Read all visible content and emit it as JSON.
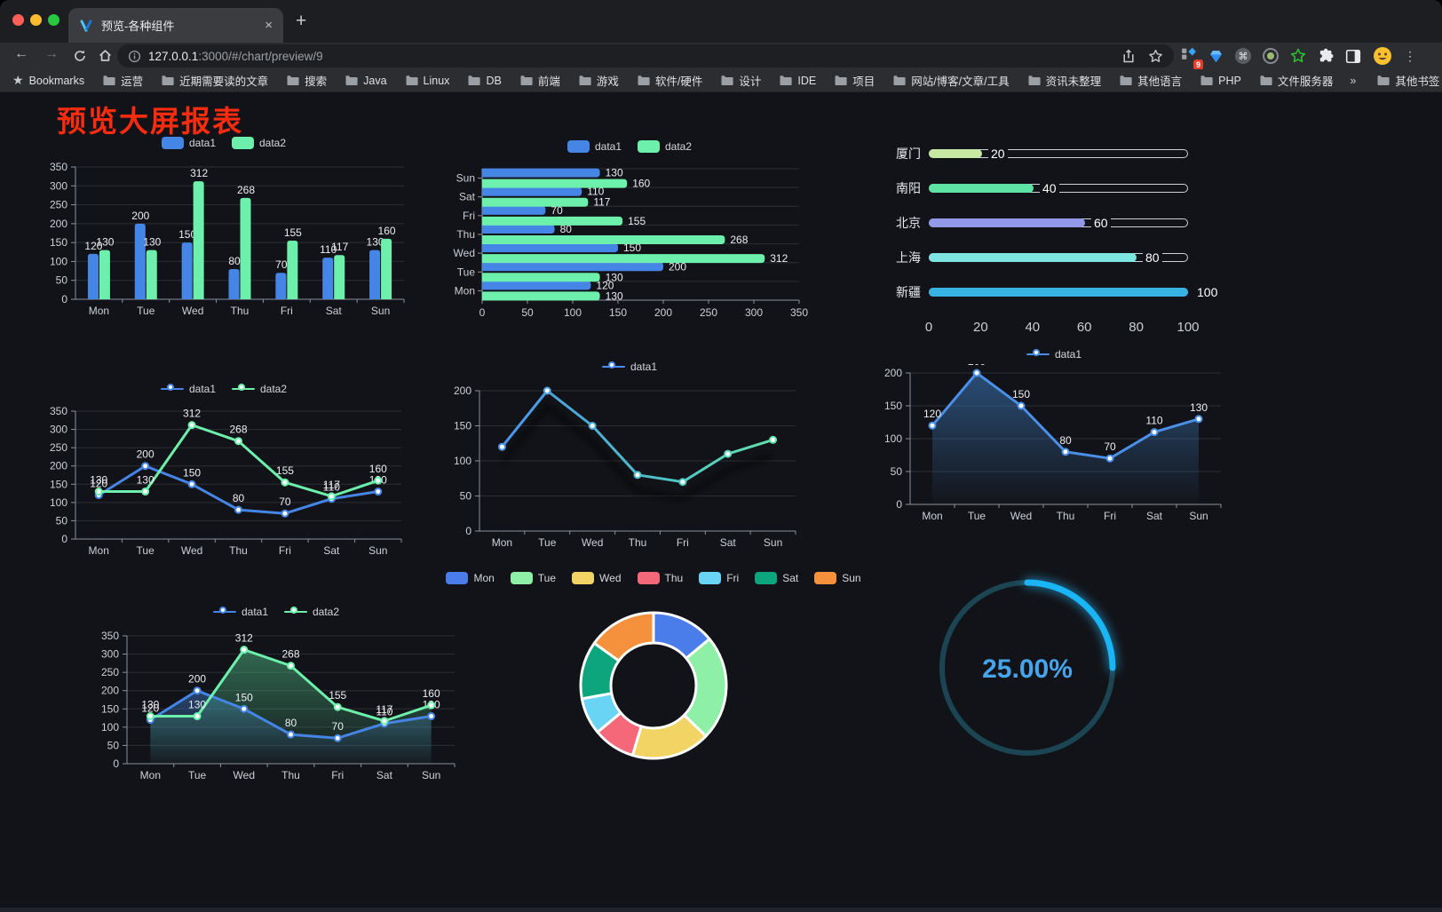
{
  "browser": {
    "traffic_lights": {
      "close": "#ff5f57",
      "minimize": "#febc2e",
      "maximize": "#28c840"
    },
    "tab": {
      "title": "预览-各种组件",
      "close_glyph": "×",
      "new_tab_glyph": "+"
    },
    "nav": {
      "back_glyph": "←",
      "forward_glyph": "→"
    },
    "url": {
      "host": "127.0.0.1",
      "rest": ":3000/#/chart/preview/9"
    },
    "extension_badge": "9",
    "menu_glyph": "⋮",
    "bookmarks": {
      "star_glyph": "★",
      "label": "Bookmarks",
      "items": [
        "运营",
        "近期需要读的文章",
        "搜索",
        "Java",
        "Linux",
        "DB",
        "前端",
        "游戏",
        "软件/硬件",
        "设计",
        "IDE",
        "项目",
        "网站/博客/文章/工具",
        "资讯未整理",
        "其他语言",
        "PHP",
        "文件服务器"
      ],
      "overflow_glyph": "»",
      "other_label": "其他书签"
    }
  },
  "page": {
    "title": "预览大屏报表",
    "title_color": "#f92c10",
    "background": "#121318"
  },
  "chart_data": [
    {
      "id": "chart-vbar",
      "type": "bar",
      "orient": "vertical",
      "legend": "rect",
      "categories": [
        "Mon",
        "Tue",
        "Wed",
        "Thu",
        "Fri",
        "Sat",
        "Sun"
      ],
      "series": [
        {
          "name": "data1",
          "color": "#4585e6",
          "values": [
            120,
            200,
            150,
            80,
            70,
            110,
            130
          ]
        },
        {
          "name": "data2",
          "color": "#6cf0ab",
          "values": [
            130,
            130,
            312,
            268,
            155,
            117,
            160
          ]
        }
      ],
      "ylim": [
        0,
        350
      ],
      "yticks": [
        0,
        50,
        100,
        150,
        200,
        250,
        300,
        350
      ],
      "value_labels": true,
      "grid": true
    },
    {
      "id": "chart-hbar",
      "type": "bar",
      "orient": "horizontal",
      "legend": "rect",
      "categories": [
        "Mon",
        "Tue",
        "Wed",
        "Thu",
        "Fri",
        "Sat",
        "Sun"
      ],
      "series": [
        {
          "name": "data1",
          "color": "#4585e6",
          "values": [
            120,
            200,
            150,
            80,
            70,
            110,
            130
          ]
        },
        {
          "name": "data2",
          "color": "#6cf0ab",
          "values": [
            130,
            130,
            312,
            268,
            155,
            117,
            160
          ]
        }
      ],
      "xlim": [
        0,
        350
      ],
      "xticks": [
        0,
        50,
        100,
        150,
        200,
        250,
        300,
        350
      ],
      "value_labels": true,
      "grid": true
    },
    {
      "id": "chart-progress",
      "type": "progress",
      "max": 100,
      "axis_ticks": [
        0,
        20,
        40,
        60,
        80,
        100
      ],
      "rows": [
        {
          "label": "厦门",
          "value": 20,
          "color": "#c6e8a2"
        },
        {
          "label": "南阳",
          "value": 40,
          "color": "#5fe3a4"
        },
        {
          "label": "北京",
          "value": 60,
          "color": "#9399e9"
        },
        {
          "label": "上海",
          "value": 80,
          "color": "#7de6e2"
        },
        {
          "label": "新疆",
          "value": 100,
          "color": "#38b2e3"
        }
      ]
    },
    {
      "id": "chart-line2",
      "type": "line",
      "legend": "line",
      "categories": [
        "Mon",
        "Tue",
        "Wed",
        "Thu",
        "Fri",
        "Sat",
        "Sun"
      ],
      "series": [
        {
          "name": "data1",
          "color": "#4585e6",
          "values": [
            120,
            200,
            150,
            80,
            70,
            110,
            130
          ]
        },
        {
          "name": "data2",
          "color": "#6cf0ab",
          "values": [
            130,
            130,
            312,
            268,
            155,
            117,
            160
          ]
        }
      ],
      "ylim": [
        0,
        350
      ],
      "yticks": [
        0,
        50,
        100,
        150,
        200,
        250,
        300,
        350
      ],
      "value_labels": true,
      "markers": true
    },
    {
      "id": "chart-linegrad",
      "type": "line",
      "legend": "line",
      "shadow": true,
      "categories": [
        "Mon",
        "Tue",
        "Wed",
        "Thu",
        "Fri",
        "Sat",
        "Sun"
      ],
      "series": [
        {
          "name": "data1",
          "color": "#4b8df0",
          "gradient": [
            "#4b8df0",
            "#4fc4c4",
            "#65e9a6"
          ],
          "values": [
            120,
            200,
            150,
            80,
            70,
            110,
            130
          ]
        }
      ],
      "ylim": [
        0,
        200
      ],
      "yticks": [
        0,
        50,
        100,
        150,
        200
      ],
      "value_labels": false,
      "markers": true
    },
    {
      "id": "chart-areasingle",
      "type": "line",
      "legend": "line",
      "categories": [
        "Mon",
        "Tue",
        "Wed",
        "Thu",
        "Fri",
        "Sat",
        "Sun"
      ],
      "series": [
        {
          "name": "data1",
          "color": "#4a8fe8",
          "area": [
            "rgba(62,125,195,0.55)",
            "rgba(62,125,195,0.02)"
          ],
          "values": [
            120,
            200,
            150,
            80,
            70,
            110,
            130
          ]
        }
      ],
      "ylim": [
        0,
        200
      ],
      "yticks": [
        0,
        50,
        100,
        150,
        200
      ],
      "value_labels": true,
      "markers": true
    },
    {
      "id": "chart-areadual",
      "type": "line",
      "legend": "line",
      "categories": [
        "Mon",
        "Tue",
        "Wed",
        "Thu",
        "Fri",
        "Sat",
        "Sun"
      ],
      "series": [
        {
          "name": "data1",
          "color": "#4585e6",
          "area": [
            "rgba(58,110,180,0.55)",
            "rgba(58,110,180,0.03)"
          ],
          "values": [
            120,
            200,
            150,
            80,
            70,
            110,
            130
          ]
        },
        {
          "name": "data2",
          "color": "#6cf0ab",
          "area": [
            "rgba(86,210,150,0.45)",
            "rgba(86,210,150,0.03)"
          ],
          "values": [
            130,
            130,
            312,
            268,
            155,
            117,
            160
          ]
        }
      ],
      "ylim": [
        0,
        350
      ],
      "yticks": [
        0,
        50,
        100,
        150,
        200,
        250,
        300,
        350
      ],
      "value_labels": true,
      "markers": true
    },
    {
      "id": "chart-donut",
      "type": "donut",
      "legend": "rect",
      "inner_radius": 48,
      "outer_radius": 82,
      "slices": [
        {
          "name": "Mon",
          "value": 120,
          "color": "#4a7de9"
        },
        {
          "name": "Tue",
          "value": 200,
          "color": "#8ef0a6"
        },
        {
          "name": "Wed",
          "value": 150,
          "color": "#f2d464"
        },
        {
          "name": "Thu",
          "value": 80,
          "color": "#f4687a"
        },
        {
          "name": "Fri",
          "value": 70,
          "color": "#69d4f4"
        },
        {
          "name": "Sat",
          "value": 110,
          "color": "#0da57e"
        },
        {
          "name": "Sun",
          "value": 130,
          "color": "#f5913d"
        }
      ]
    },
    {
      "id": "chart-gauge",
      "type": "gauge",
      "percent": 25,
      "label": "25.00%",
      "track_color": "#1c4553",
      "progress_color": "#1ab5f5",
      "text_color": "#47a4ea"
    }
  ]
}
